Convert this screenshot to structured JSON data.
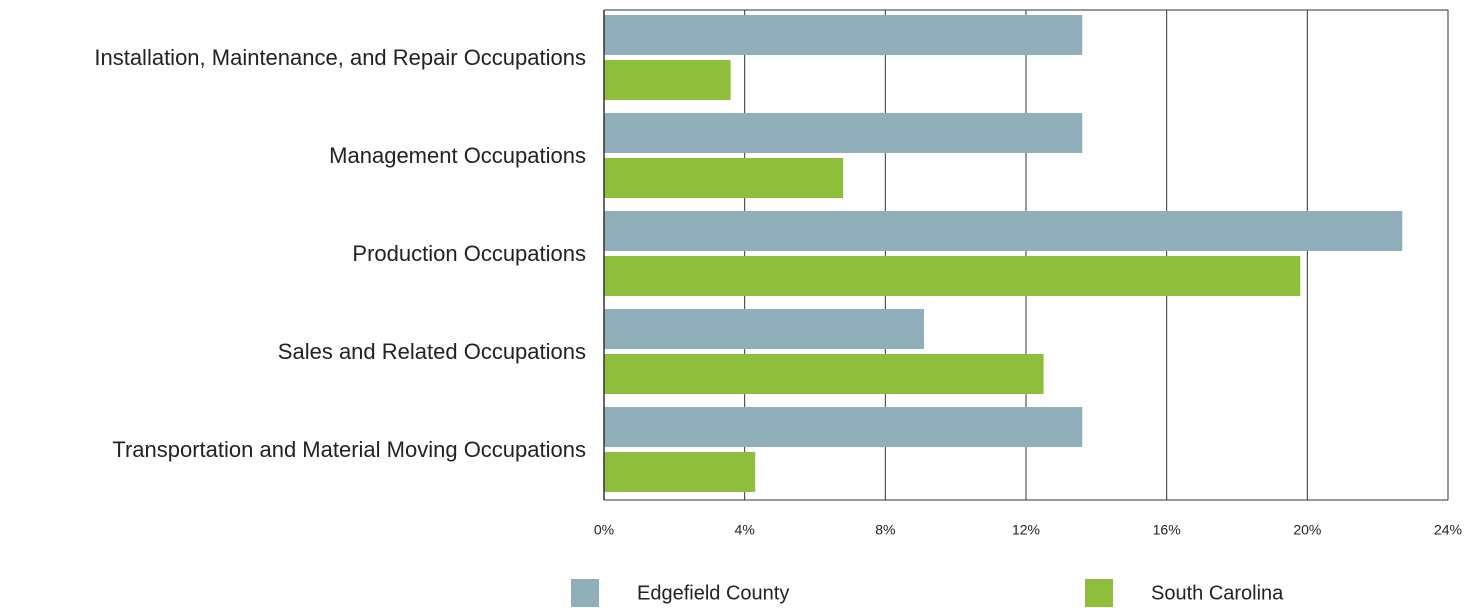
{
  "chart_data": {
    "type": "hbar",
    "categories": [
      "Installation, Maintenance, and Repair Occupations",
      "Management Occupations",
      "Production Occupations",
      "Sales and Related Occupations",
      "Transportation and Material Moving Occupations"
    ],
    "series": [
      {
        "name": "Edgefield County",
        "color": "#91afba",
        "values": [
          13.6,
          13.6,
          22.7,
          9.1,
          13.6
        ]
      },
      {
        "name": "South Carolina",
        "color": "#8fbe3c",
        "values": [
          3.6,
          6.8,
          19.8,
          12.5,
          4.3
        ]
      }
    ],
    "xlim": [
      0,
      24
    ],
    "xticks": [
      {
        "value": 0,
        "label": "0%"
      },
      {
        "value": 4,
        "label": "4%"
      },
      {
        "value": 8,
        "label": "8%"
      },
      {
        "value": 12,
        "label": "12%"
      },
      {
        "value": 16,
        "label": "16%"
      },
      {
        "value": 20,
        "label": "20%"
      },
      {
        "value": 24,
        "label": "24%"
      }
    ],
    "grid": true
  }
}
